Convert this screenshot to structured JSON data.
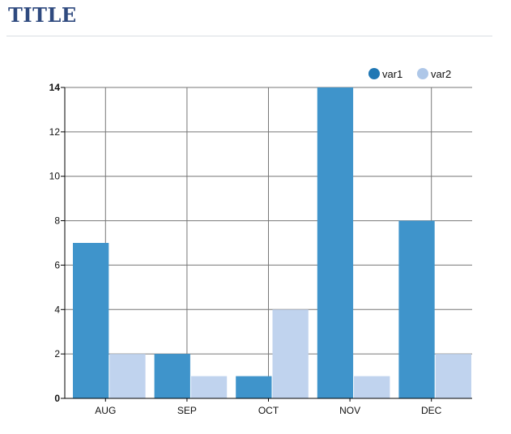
{
  "page": {
    "title": "TITLE"
  },
  "chart_data": {
    "type": "bar",
    "categories": [
      "AUG",
      "SEP",
      "OCT",
      "NOV",
      "DEC"
    ],
    "series": [
      {
        "name": "var1",
        "values": [
          7,
          2,
          1,
          14,
          8
        ],
        "color": "#3f94cb"
      },
      {
        "name": "var2",
        "values": [
          2,
          1,
          4,
          1,
          2
        ],
        "color": "#c0d3ee"
      }
    ],
    "legend_colors": [
      "#1f77b4",
      "#aec7e8"
    ],
    "yticks": [
      0,
      2,
      4,
      6,
      8,
      10,
      12,
      14
    ],
    "ylim": [
      0,
      14
    ],
    "grid": true,
    "legend_position": "top-right"
  }
}
